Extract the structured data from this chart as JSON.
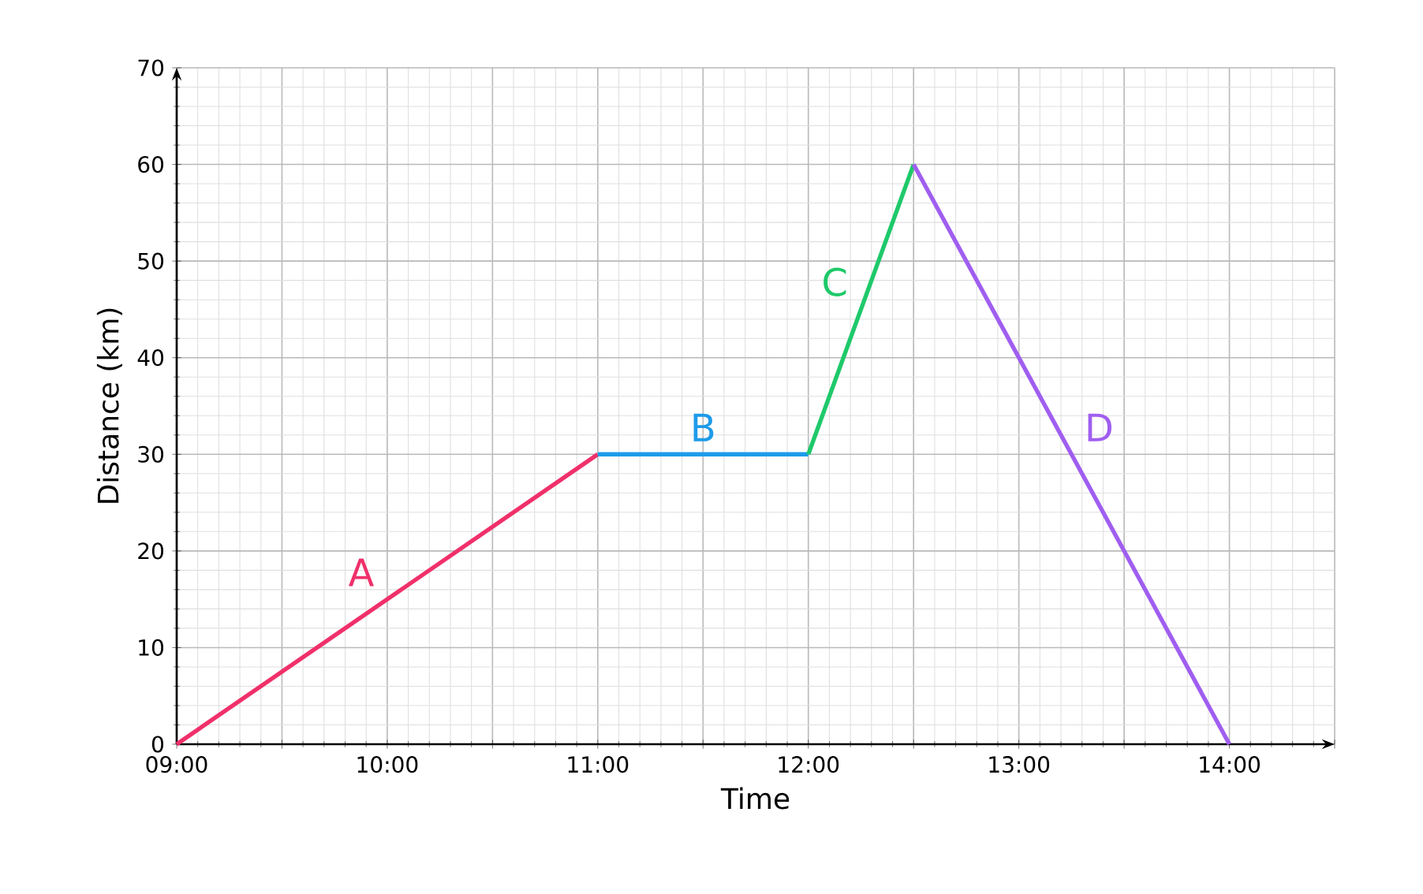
{
  "chart_data": {
    "type": "line",
    "xlabel": "Time",
    "ylabel": "Distance (km)",
    "xlim": [
      9,
      14.5
    ],
    "ylim": [
      0,
      70
    ],
    "xticks": [
      {
        "value": 9,
        "label": "09:00"
      },
      {
        "value": 9.5,
        "label": null
      },
      {
        "value": 10,
        "label": "10:00"
      },
      {
        "value": 10.5,
        "label": null
      },
      {
        "value": 11,
        "label": "11:00"
      },
      {
        "value": 11.5,
        "label": null
      },
      {
        "value": 12,
        "label": "12:00"
      },
      {
        "value": 12.5,
        "label": null
      },
      {
        "value": 13,
        "label": "13:00"
      },
      {
        "value": 13.5,
        "label": null
      },
      {
        "value": 14,
        "label": "14:00"
      },
      {
        "value": 14.5,
        "label": null
      }
    ],
    "yticks": [
      0,
      10,
      20,
      30,
      40,
      50,
      60,
      70
    ],
    "grid": true,
    "legend": false,
    "marker": "none",
    "line_style": "solid",
    "series": [
      {
        "name": "A",
        "color": "#f0306a",
        "x": [
          9,
          11
        ],
        "values": [
          0,
          30
        ]
      },
      {
        "name": "B",
        "color": "#1e9be9",
        "x": [
          11,
          12
        ],
        "values": [
          30,
          30
        ]
      },
      {
        "name": "C",
        "color": "#1ec96a",
        "x": [
          12,
          12.5
        ],
        "values": [
          30,
          60
        ]
      },
      {
        "name": "D",
        "color": "#a05ef0",
        "x": [
          12.5,
          14
        ],
        "values": [
          60,
          0
        ]
      }
    ]
  }
}
